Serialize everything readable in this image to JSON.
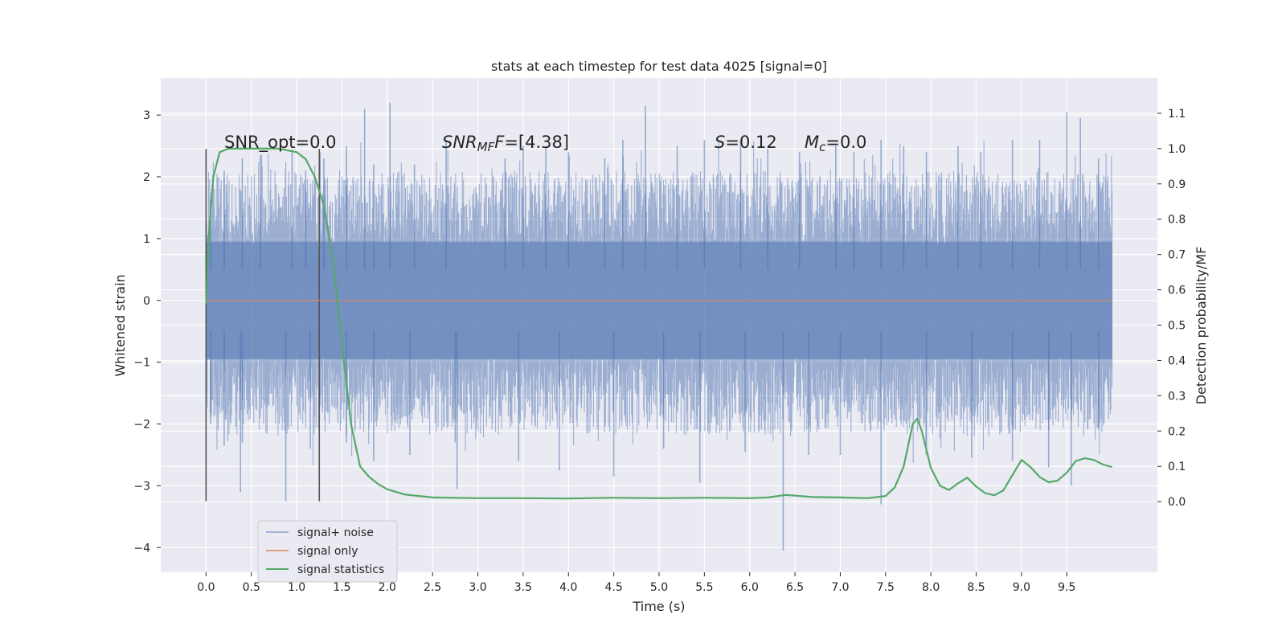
{
  "chart_data": {
    "type": "line",
    "title": "stats at each timestep for test data 4025 [signal=0]",
    "xlabel": "Time (s)",
    "ylabel": "Whitened strain",
    "y2label": "Detection probability/MF",
    "xlim": [
      -0.5,
      10.5
    ],
    "ylim": [
      -4.4,
      3.6
    ],
    "y2lim": [
      -0.2,
      1.2
    ],
    "x_ticks": [
      "0.0",
      "0.5",
      "1.0",
      "1.5",
      "2.0",
      "2.5",
      "3.0",
      "3.5",
      "4.0",
      "4.5",
      "5.0",
      "5.5",
      "6.0",
      "6.5",
      "7.0",
      "7.5",
      "8.0",
      "8.5",
      "9.0",
      "9.5"
    ],
    "y_ticks": [
      "3",
      "2",
      "1",
      "0",
      "−1",
      "−2",
      "−3",
      "−4"
    ],
    "y2_ticks": [
      "1.1",
      "1.0",
      "0.9",
      "0.8",
      "0.7",
      "0.6",
      "0.5",
      "0.4",
      "0.3",
      "0.2",
      "0.1",
      "0.0"
    ],
    "grid": true,
    "legend_position": "lower-left",
    "colors": {
      "background": "#eaeaf2",
      "grid": "#ffffff",
      "noise": "#4c72b0",
      "signal_only": "#dd8452",
      "statistics": "#55a868",
      "vlines": "#555555"
    },
    "annotations": {
      "snr_opt": "SNR_opt=0.0",
      "snr_mf_name": "SNR",
      "snr_mf_sub": "MF",
      "snr_mf_value": "=[4.38]",
      "s_name": "S",
      "s_value": "=0.12",
      "mc_name": "M",
      "mc_sub": "c",
      "mc_value": "=0.0"
    },
    "vertical_lines": [
      {
        "x": 0.0,
        "y_range": [
          -3.25,
          2.45
        ]
      },
      {
        "x": 1.25,
        "y_range": [
          -3.25,
          2.45
        ]
      }
    ],
    "series": [
      {
        "name": "signal+ noise",
        "kind": "noise_band",
        "x_range": [
          0.0,
          10.0
        ],
        "envelope_low": -1.4,
        "envelope_high": 1.35,
        "peaks_high": [
          [
            0.05,
            1.6
          ],
          [
            0.2,
            2.1
          ],
          [
            0.4,
            2.3
          ],
          [
            0.6,
            2.35
          ],
          [
            0.95,
            2.45
          ],
          [
            1.1,
            2.1
          ],
          [
            1.3,
            2.3
          ],
          [
            1.55,
            2.5
          ],
          [
            1.75,
            3.1
          ],
          [
            1.85,
            2.2
          ],
          [
            2.03,
            3.2
          ],
          [
            2.3,
            2.2
          ],
          [
            2.65,
            2.6
          ],
          [
            3.3,
            2.3
          ],
          [
            3.5,
            2.5
          ],
          [
            3.75,
            2.5
          ],
          [
            4.0,
            2.4
          ],
          [
            4.4,
            2.3
          ],
          [
            4.6,
            2.6
          ],
          [
            4.85,
            3.15
          ],
          [
            5.2,
            2.5
          ],
          [
            5.5,
            2.6
          ],
          [
            5.9,
            2.6
          ],
          [
            6.2,
            2.45
          ],
          [
            6.55,
            2.4
          ],
          [
            6.95,
            2.5
          ],
          [
            7.15,
            2.4
          ],
          [
            7.45,
            2.6
          ],
          [
            7.7,
            2.5
          ],
          [
            7.95,
            2.4
          ],
          [
            8.3,
            2.5
          ],
          [
            8.55,
            2.4
          ],
          [
            8.9,
            2.6
          ],
          [
            9.2,
            2.6
          ],
          [
            9.5,
            3.05
          ],
          [
            9.65,
            2.95
          ],
          [
            9.85,
            2.3
          ]
        ],
        "peaks_low": [
          [
            0.05,
            -2.0
          ],
          [
            0.2,
            -2.35
          ],
          [
            0.4,
            -2.3
          ],
          [
            0.38,
            -3.1
          ],
          [
            0.88,
            -3.25
          ],
          [
            1.15,
            -2.4
          ],
          [
            1.55,
            -2.3
          ],
          [
            1.85,
            -2.6
          ],
          [
            2.25,
            -2.5
          ],
          [
            2.75,
            -2.3
          ],
          [
            2.77,
            -3.05
          ],
          [
            3.45,
            -2.6
          ],
          [
            3.9,
            -2.75
          ],
          [
            4.5,
            -2.85
          ],
          [
            5.05,
            -2.4
          ],
          [
            5.45,
            -2.95
          ],
          [
            5.95,
            -2.45
          ],
          [
            6.37,
            -4.05
          ],
          [
            6.65,
            -2.5
          ],
          [
            7.0,
            -2.5
          ],
          [
            7.45,
            -3.3
          ],
          [
            7.95,
            -2.4
          ],
          [
            8.45,
            -2.55
          ],
          [
            8.9,
            -2.6
          ],
          [
            9.3,
            -2.7
          ],
          [
            9.55,
            -3.0
          ],
          [
            9.85,
            -2.05
          ]
        ]
      },
      {
        "name": "signal only",
        "kind": "line",
        "x": [
          0.0,
          10.0
        ],
        "y": [
          0.0,
          0.0
        ]
      },
      {
        "name": "signal statistics",
        "kind": "line",
        "axis": "right",
        "x": [
          0.0,
          0.03,
          0.08,
          0.15,
          0.25,
          0.4,
          0.6,
          0.8,
          1.0,
          1.1,
          1.2,
          1.3,
          1.4,
          1.5,
          1.6,
          1.7,
          1.8,
          1.9,
          2.0,
          2.2,
          2.5,
          3.0,
          3.5,
          4.0,
          4.5,
          5.0,
          5.5,
          6.0,
          6.2,
          6.4,
          6.7,
          7.0,
          7.3,
          7.5,
          7.6,
          7.7,
          7.8,
          7.85,
          7.9,
          8.0,
          8.1,
          8.2,
          8.3,
          8.4,
          8.5,
          8.6,
          8.7,
          8.8,
          8.9,
          9.0,
          9.1,
          9.2,
          9.3,
          9.4,
          9.5,
          9.6,
          9.7,
          9.8,
          9.9,
          10.0
        ],
        "y": [
          0.56,
          0.75,
          0.92,
          0.99,
          1.0,
          1.0,
          1.0,
          1.0,
          0.99,
          0.97,
          0.92,
          0.84,
          0.68,
          0.45,
          0.22,
          0.1,
          0.07,
          0.05,
          0.035,
          0.02,
          0.012,
          0.01,
          0.01,
          0.009,
          0.011,
          0.01,
          0.011,
          0.01,
          0.012,
          0.019,
          0.013,
          0.012,
          0.01,
          0.016,
          0.04,
          0.1,
          0.22,
          0.235,
          0.2,
          0.095,
          0.045,
          0.033,
          0.052,
          0.068,
          0.043,
          0.024,
          0.018,
          0.032,
          0.075,
          0.118,
          0.098,
          0.07,
          0.055,
          0.06,
          0.082,
          0.115,
          0.123,
          0.118,
          0.105,
          0.098
        ]
      }
    ]
  }
}
